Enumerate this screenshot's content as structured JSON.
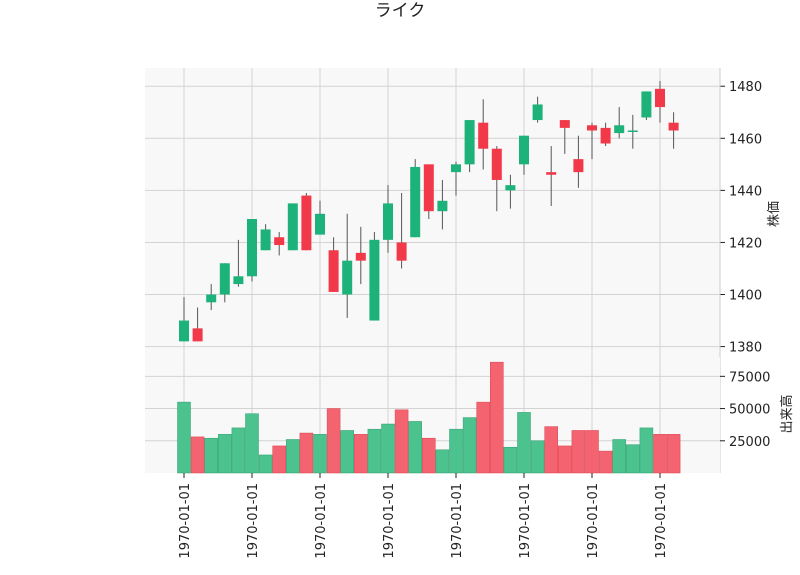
{
  "chart_data": {
    "type": "candlestick",
    "title": "ライク",
    "price_ylabel": "株価",
    "volume_ylabel": "出来高",
    "xlabel": "",
    "price_ylim": [
      1376,
      1487
    ],
    "volume_ylim": [
      0,
      90000
    ],
    "price_ticks": [
      1380,
      1400,
      1420,
      1440,
      1460,
      1480
    ],
    "volume_ticks": [
      25000,
      50000,
      75000
    ],
    "x_tick_labels": [
      "1970-01-01",
      "1970-01-01",
      "1970-01-01",
      "1970-01-01",
      "1970-01-01",
      "1970-01-01",
      "1970-01-01",
      "1970-01-01"
    ],
    "x_tick_indices": [
      0,
      5,
      10,
      15,
      20,
      25,
      30,
      35
    ],
    "grid": true,
    "colors": {
      "up": "#1db27a",
      "down": "#f2394a",
      "up_volume": "#4cc28f",
      "down_volume": "#f46470",
      "panel_bg": "#f8f8f8",
      "grid": "#d3d3d3"
    },
    "candles": [
      {
        "open": 1382,
        "high": 1399,
        "low": 1382,
        "close": 1390,
        "volume": 55000
      },
      {
        "open": 1387,
        "high": 1395,
        "low": 1382,
        "close": 1382,
        "volume": 28000
      },
      {
        "open": 1397,
        "high": 1404,
        "low": 1394,
        "close": 1400,
        "volume": 27000
      },
      {
        "open": 1400,
        "high": 1412,
        "low": 1397,
        "close": 1412,
        "volume": 30000
      },
      {
        "open": 1404,
        "high": 1421,
        "low": 1403,
        "close": 1407,
        "volume": 35000
      },
      {
        "open": 1407,
        "high": 1429,
        "low": 1405,
        "close": 1429,
        "volume": 46000
      },
      {
        "open": 1417,
        "high": 1427,
        "low": 1417,
        "close": 1425,
        "volume": 14000
      },
      {
        "open": 1422,
        "high": 1424,
        "low": 1415,
        "close": 1419,
        "volume": 21000
      },
      {
        "open": 1417,
        "high": 1435,
        "low": 1417,
        "close": 1435,
        "volume": 26000
      },
      {
        "open": 1438,
        "high": 1439,
        "low": 1417,
        "close": 1417,
        "volume": 31000
      },
      {
        "open": 1423,
        "high": 1436,
        "low": 1423,
        "close": 1431,
        "volume": 30000
      },
      {
        "open": 1417,
        "high": 1422,
        "low": 1401,
        "close": 1401,
        "volume": 50000
      },
      {
        "open": 1400,
        "high": 1431,
        "low": 1391,
        "close": 1413,
        "volume": 33000
      },
      {
        "open": 1416,
        "high": 1426,
        "low": 1404,
        "close": 1413,
        "volume": 30000
      },
      {
        "open": 1390,
        "high": 1424,
        "low": 1390,
        "close": 1421,
        "volume": 34000
      },
      {
        "open": 1421,
        "high": 1442,
        "low": 1416,
        "close": 1435,
        "volume": 38000
      },
      {
        "open": 1420,
        "high": 1439,
        "low": 1410,
        "close": 1413,
        "volume": 49000
      },
      {
        "open": 1422,
        "high": 1452,
        "low": 1422,
        "close": 1449,
        "volume": 40000
      },
      {
        "open": 1450,
        "high": 1450,
        "low": 1429,
        "close": 1432,
        "volume": 27000
      },
      {
        "open": 1432,
        "high": 1444,
        "low": 1425,
        "close": 1436,
        "volume": 18000
      },
      {
        "open": 1447,
        "high": 1451,
        "low": 1438,
        "close": 1450,
        "volume": 34000
      },
      {
        "open": 1450,
        "high": 1467,
        "low": 1447,
        "close": 1467,
        "volume": 43000
      },
      {
        "open": 1466,
        "high": 1475,
        "low": 1448,
        "close": 1456,
        "volume": 55000
      },
      {
        "open": 1456,
        "high": 1457,
        "low": 1432,
        "close": 1444,
        "volume": 86000
      },
      {
        "open": 1440,
        "high": 1446,
        "low": 1433,
        "close": 1442,
        "volume": 20000
      },
      {
        "open": 1450,
        "high": 1461,
        "low": 1446,
        "close": 1461,
        "volume": 47000
      },
      {
        "open": 1467,
        "high": 1476,
        "low": 1466,
        "close": 1473,
        "volume": 25000
      },
      {
        "open": 1447,
        "high": 1457,
        "low": 1434,
        "close": 1446,
        "volume": 36000
      },
      {
        "open": 1467,
        "high": 1467,
        "low": 1454,
        "close": 1464,
        "volume": 21000
      },
      {
        "open": 1452,
        "high": 1461,
        "low": 1441,
        "close": 1447,
        "volume": 33000
      },
      {
        "open": 1465,
        "high": 1466,
        "low": 1452,
        "close": 1463,
        "volume": 33000
      },
      {
        "open": 1464,
        "high": 1466,
        "low": 1457,
        "close": 1458,
        "volume": 17000
      },
      {
        "open": 1462,
        "high": 1472,
        "low": 1460,
        "close": 1465,
        "volume": 26000
      },
      {
        "open": 1463,
        "high": 1469,
        "low": 1456,
        "close": 1463,
        "volume": 22000
      },
      {
        "open": 1468,
        "high": 1478,
        "low": 1467,
        "close": 1478,
        "volume": 35000
      },
      {
        "open": 1479,
        "high": 1482,
        "low": 1466,
        "close": 1472,
        "volume": 30000
      },
      {
        "open": 1466,
        "high": 1470,
        "low": 1456,
        "close": 1463,
        "volume": 30000
      }
    ]
  }
}
